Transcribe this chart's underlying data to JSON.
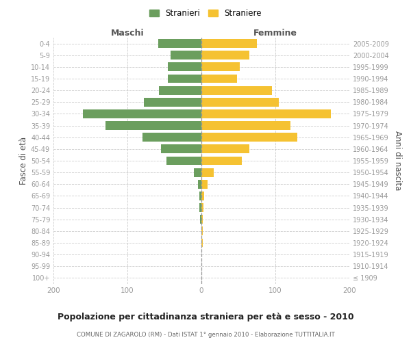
{
  "age_groups": [
    "100+",
    "95-99",
    "90-94",
    "85-89",
    "80-84",
    "75-79",
    "70-74",
    "65-69",
    "60-64",
    "55-59",
    "50-54",
    "45-49",
    "40-44",
    "35-39",
    "30-34",
    "25-29",
    "20-24",
    "15-19",
    "10-14",
    "5-9",
    "0-4"
  ],
  "birth_years": [
    "≤ 1909",
    "1910-1914",
    "1915-1919",
    "1920-1924",
    "1925-1929",
    "1930-1934",
    "1935-1939",
    "1940-1944",
    "1945-1949",
    "1950-1954",
    "1955-1959",
    "1960-1964",
    "1965-1969",
    "1970-1974",
    "1975-1979",
    "1980-1984",
    "1985-1989",
    "1990-1994",
    "1995-1999",
    "2000-2004",
    "2005-2009"
  ],
  "maschi": [
    0,
    0,
    0,
    0,
    0,
    2,
    3,
    3,
    5,
    10,
    47,
    55,
    80,
    130,
    160,
    78,
    57,
    45,
    45,
    42,
    58
  ],
  "femmine": [
    0,
    0,
    0,
    2,
    2,
    2,
    3,
    4,
    8,
    17,
    55,
    65,
    130,
    120,
    175,
    105,
    95,
    48,
    52,
    65,
    75
  ],
  "maschi_color": "#6b9e5e",
  "femmine_color": "#f5c232",
  "title": "Popolazione per cittadinanza straniera per età e sesso - 2010",
  "subtitle": "COMUNE DI ZAGAROLO (RM) - Dati ISTAT 1° gennaio 2010 - Elaborazione TUTTITALIA.IT",
  "xlabel_left": "Maschi",
  "xlabel_right": "Femmine",
  "ylabel_left": "Fasce di età",
  "ylabel_right": "Anni di nascita",
  "legend_maschi": "Stranieri",
  "legend_femmine": "Straniere",
  "xlim": 200,
  "background_color": "#ffffff",
  "grid_color": "#cccccc"
}
